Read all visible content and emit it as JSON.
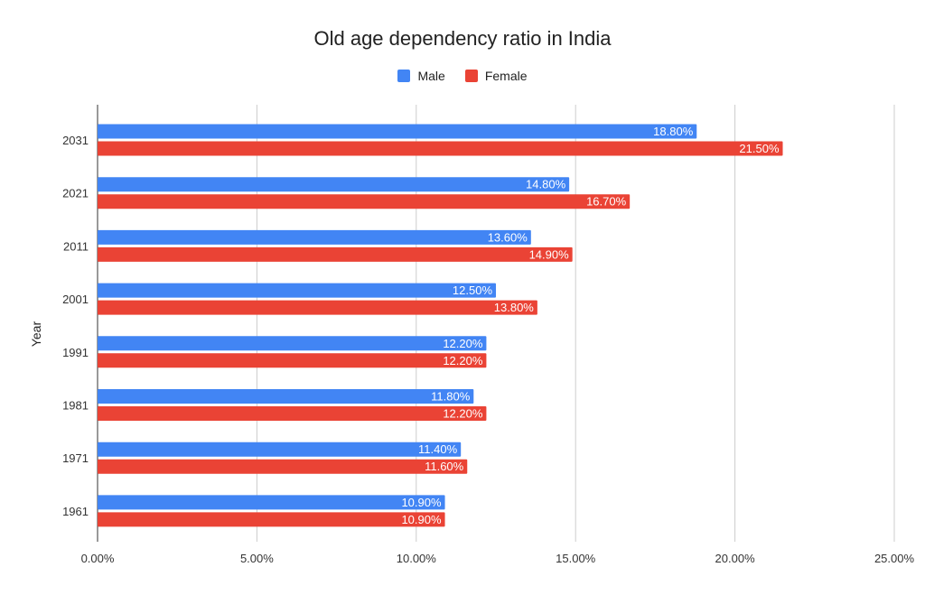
{
  "chart_data": {
    "type": "bar",
    "orientation": "horizontal",
    "title": "Old age dependency ratio in India",
    "ylabel": "Year",
    "xlabel": "",
    "categories": [
      "2031",
      "2021",
      "2011",
      "2001",
      "1991",
      "1981",
      "1971",
      "1961"
    ],
    "series": [
      {
        "name": "Male",
        "color": "#4285F4",
        "values": [
          18.8,
          14.8,
          13.6,
          12.5,
          12.2,
          11.8,
          11.4,
          10.9
        ],
        "labels": [
          "18.80%",
          "14.80%",
          "13.60%",
          "12.50%",
          "12.20%",
          "11.80%",
          "11.40%",
          "10.90%"
        ]
      },
      {
        "name": "Female",
        "color": "#EA4335",
        "values": [
          21.5,
          16.7,
          14.9,
          13.8,
          12.2,
          12.2,
          11.6,
          10.9
        ],
        "labels": [
          "21.50%",
          "16.70%",
          "14.90%",
          "13.80%",
          "12.20%",
          "12.20%",
          "11.60%",
          "10.90%"
        ]
      }
    ],
    "xlim": [
      0,
      25
    ],
    "xticks": [
      0,
      5,
      10,
      15,
      20,
      25
    ],
    "xtick_labels": [
      "0.00%",
      "5.00%",
      "10.00%",
      "15.00%",
      "20.00%",
      "25.00%"
    ],
    "grid": true,
    "legend_position": "top"
  }
}
